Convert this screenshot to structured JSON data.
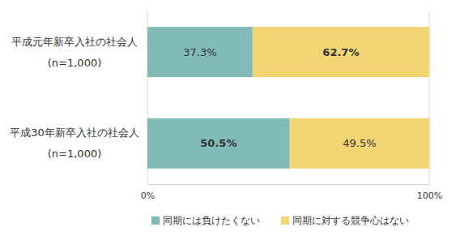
{
  "chart_data": {
    "type": "bar",
    "orientation": "horizontal",
    "stacked": true,
    "categories": [
      "平成元年新卒入社の社会人\n(n=1,000)",
      "平成30年新卒入社の社会人\n(n=1,000)"
    ],
    "series": [
      {
        "name": "同期には負けたくない",
        "color": "#80bbb8",
        "values": [
          37.3,
          50.5
        ],
        "value_labels": [
          "37.3%",
          "50.5%"
        ]
      },
      {
        "name": "同期に対する競争心はない",
        "color": "#f4d574",
        "values": [
          62.7,
          49.5
        ],
        "value_labels": [
          "62.7%",
          "49.5%"
        ]
      }
    ],
    "xlim": [
      0,
      100
    ],
    "xticks": [
      {
        "value": 0,
        "label": "0%"
      },
      {
        "value": 100,
        "label": "100%"
      }
    ],
    "grid": true,
    "data_labels": true,
    "legend": "bottom"
  }
}
